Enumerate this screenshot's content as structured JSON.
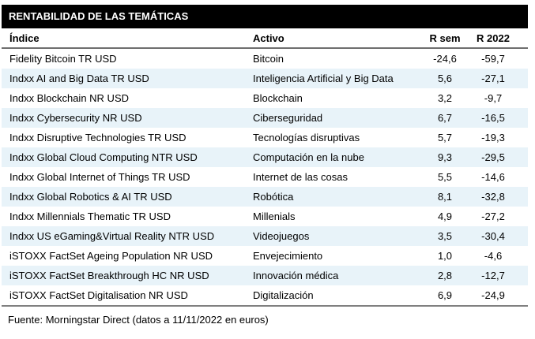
{
  "chart_data": {
    "type": "table",
    "title": "RENTABILIDAD DE LAS TEMÁTICAS",
    "columns": [
      "Índice",
      "Activo",
      "R sem",
      "R 2022"
    ],
    "rows": [
      [
        "Fidelity Bitcoin TR USD",
        "Bitcoin",
        "-24,6",
        "-59,7"
      ],
      [
        "Indxx AI and Big Data TR USD",
        "Inteligencia Artificial y Big Data",
        "5,6",
        "-27,1"
      ],
      [
        "Indxx Blockchain NR USD",
        "Blockchain",
        "3,2",
        "-9,7"
      ],
      [
        "Indxx Cybersecurity NR USD",
        "Ciberseguridad",
        "6,7",
        "-16,5"
      ],
      [
        "Indxx Disruptive Technologies TR USD",
        "Tecnologías disruptivas",
        "5,7",
        "-19,3"
      ],
      [
        "Indxx Global Cloud Computing NTR USD",
        "Computación en la nube",
        "9,3",
        "-29,5"
      ],
      [
        "Indxx Global Internet of Things TR USD",
        "Internet de las cosas",
        "5,5",
        "-14,6"
      ],
      [
        "Indxx Global Robotics & AI TR USD",
        "Robótica",
        "8,1",
        "-32,8"
      ],
      [
        "Indxx Millennials Thematic TR USD",
        "Millenials",
        "4,9",
        "-27,2"
      ],
      [
        "Indxx US eGaming&Virtual Reality NTR USD",
        "Videojuegos",
        "3,5",
        "-30,4"
      ],
      [
        "iSTOXX FactSet Ageing Population NR USD",
        "Envejecimiento",
        "1,0",
        "-4,6"
      ],
      [
        "iSTOXX FactSet Breakthrough HC NR USD",
        "Innovación médica",
        "2,8",
        "-12,7"
      ],
      [
        "iSTOXX FactSet Digitalisation NR USD",
        "Digitalización",
        "6,9",
        "-24,9"
      ]
    ],
    "source_note": "Fuente: Morningstar Direct (datos a 11/11/2022 en euros)",
    "layout": {
      "legend": "none",
      "grid": false,
      "alternating_row_shading": true,
      "first_data_row_shaded": false
    }
  },
  "colors": {
    "title_bar_bg": "#000000",
    "title_bar_text": "#ffffff",
    "row_alt_bg": "#e8f3f9",
    "separator": "#808080",
    "text": "#000000",
    "page_bg": "#ffffff"
  }
}
